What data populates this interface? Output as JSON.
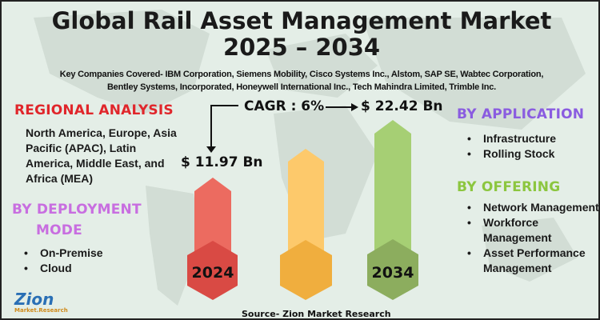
{
  "title_line1": "Global Rail Asset Management Market",
  "title_line2": "2025 – 2034",
  "companies_line1": "Key Companies Covered- IBM Corporation, Siemens Mobility, Cisco Systems Inc., Alstom, SAP SE, Wabtec Corporation,",
  "companies_line2": "Bentley Systems, Incorporated, Honeywell International Inc., Tech Mahindra Limited, Trimble Inc.",
  "regional": {
    "heading": "REGIONAL ANALYSIS",
    "text": "North America, Europe, Asia Pacific (APAC), Latin America, Middle East, and Africa (MEA)",
    "color": "#e0262b"
  },
  "deployment": {
    "heading_line1": "BY DEPLOYMENT",
    "heading_line2": "MODE",
    "items": [
      "On-Premise",
      "Cloud"
    ],
    "color": "#c86ee0"
  },
  "application": {
    "heading": "BY APPLICATION",
    "items": [
      "Infrastructure",
      "Rolling Stock"
    ],
    "color": "#8a5ce0"
  },
  "offering": {
    "heading": "BY OFFERING",
    "items": [
      "Network Management",
      "Workforce Management",
      "Asset Performance Management"
    ],
    "color": "#8cc63f"
  },
  "cagr": "CAGR : 6%",
  "value_2024": "$ 11.97 Bn",
  "value_2034": "$ 22.42 Bn",
  "year_start": "2024",
  "year_end": "2034",
  "colors": {
    "red": "#ec6b60",
    "red_dark": "#d94a44",
    "yellow": "#fdc96b",
    "yellow_dark": "#f0ae3e",
    "green": "#a6cf74",
    "green_dark": "#8cad5e"
  },
  "source": "Source- Zion Market Research",
  "logo": {
    "name": "Zion",
    "sub": "Market.Research"
  }
}
